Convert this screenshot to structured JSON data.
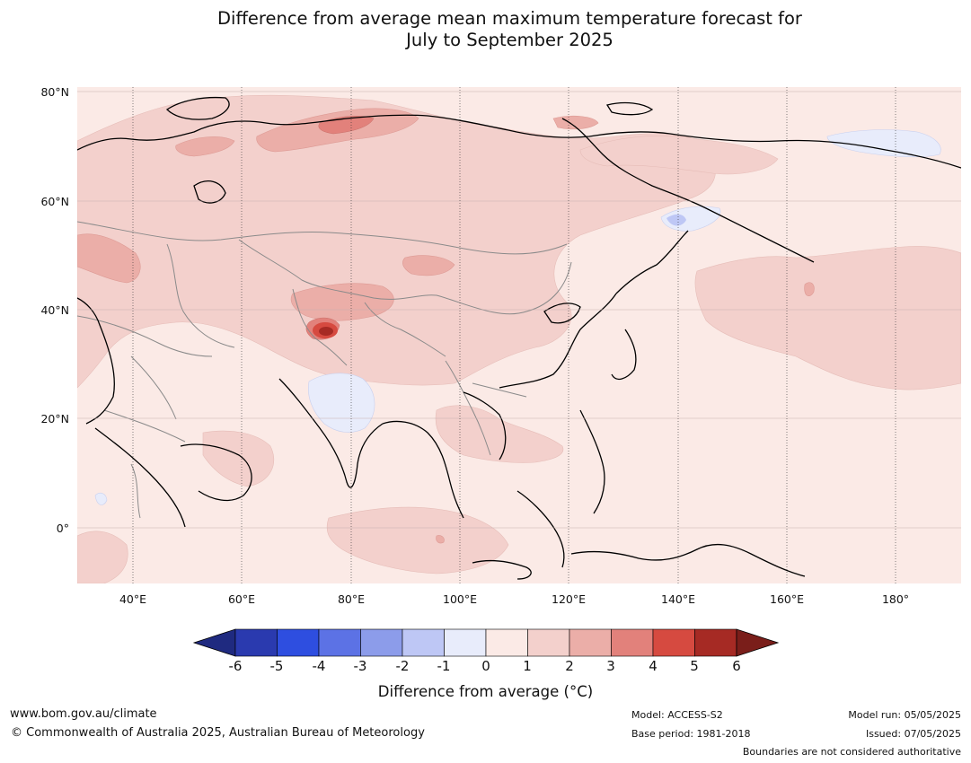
{
  "title": {
    "line1": "Difference from average mean maximum temperature forecast for",
    "line2": "July to September 2025"
  },
  "map": {
    "lat_labels": [
      "80°N",
      "60°N",
      "40°N",
      "20°N",
      "0°"
    ],
    "lon_labels": [
      "40°E",
      "60°E",
      "80°E",
      "100°E",
      "120°E",
      "140°E",
      "160°E",
      "180°"
    ],
    "lat_range": [
      -10,
      81
    ],
    "lon_range": [
      30,
      192
    ]
  },
  "colorbar": {
    "ticks": [
      "-6",
      "-5",
      "-4",
      "-3",
      "-2",
      "-1",
      "0",
      "1",
      "2",
      "3",
      "4",
      "5",
      "6"
    ],
    "colors": [
      "#1f2a80",
      "#2a3aaf",
      "#2e4ee0",
      "#5c72e5",
      "#8c9cea",
      "#bec7f5",
      "#e8ecfb",
      "#fbeae6",
      "#f3d0cc",
      "#ebaea8",
      "#e2817b",
      "#d64a40",
      "#a62a24",
      "#7a1e1a"
    ],
    "label": "Difference from average (°C)"
  },
  "footer": {
    "website": "www.bom.gov.au/climate",
    "copyright": "© Commonwealth of Australia 2025, Australian Bureau of Meteorology",
    "model": "Model: ACCESS-S2",
    "base_period": "Base period: 1981-2018",
    "model_run": "Model run: 05/05/2025",
    "issued": "Issued: 07/05/2025",
    "disclaimer": "Boundaries are not considered authoritative"
  }
}
